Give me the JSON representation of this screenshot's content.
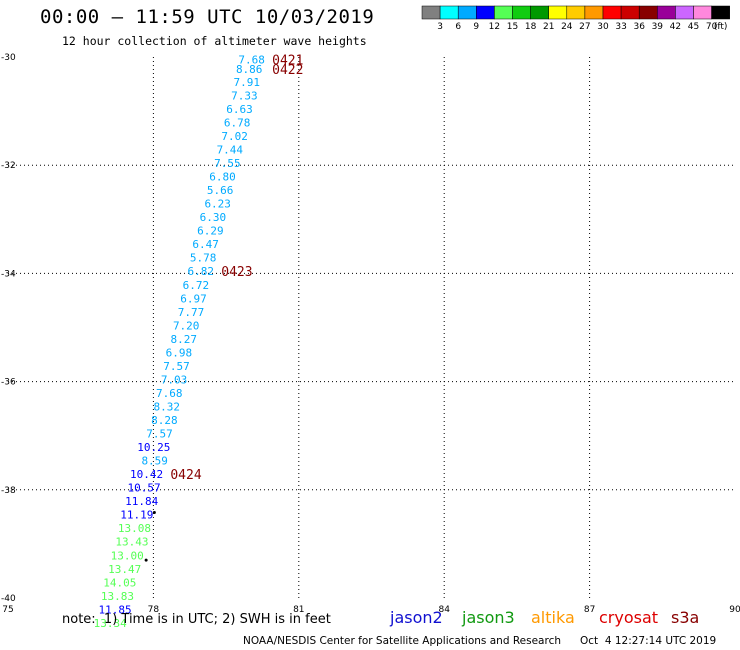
{
  "title": "00:00 — 11:59 UTC 10/03/2019",
  "subtitle": "12 hour collection of altimeter wave heights",
  "note": "note:  1) Time is in UTC; 2) SWH is in feet",
  "footer_left": "NOAA/NESDIS Center for Satellite Applications and Research",
  "footer_right": "Oct  4 12:27:14 UTC 2019",
  "satellites": [
    {
      "name": "jason2",
      "color": "#1010d0"
    },
    {
      "name": "jason3",
      "color": "#119911"
    },
    {
      "name": "altika",
      "color": "#ff9900"
    },
    {
      "name": "cryosat",
      "color": "#dd0000"
    },
    {
      "name": "s3a",
      "color": "#880000"
    }
  ],
  "colorbar": {
    "colors": [
      "#808080",
      "#00ffff",
      "#00aaff",
      "#0000ff",
      "#55ff55",
      "#11cc11",
      "#009900",
      "#ffff00",
      "#ffcc00",
      "#ff9900",
      "#ff0000",
      "#cc0000",
      "#880000",
      "#990099",
      "#cc66ff",
      "#ff88dd",
      "#000000"
    ],
    "labels": [
      "3",
      "6",
      "9",
      "12",
      "15",
      "18",
      "21",
      "24",
      "27",
      "30",
      "33",
      "36",
      "39",
      "42",
      "45",
      "70",
      "(ft)"
    ]
  },
  "chart_data": {
    "type": "scatter",
    "xlim": [
      75,
      90
    ],
    "ylim": [
      -40,
      -30
    ],
    "xticks": [
      "75",
      "78",
      "81",
      "84",
      "87",
      "90"
    ],
    "yticks": [
      "-30",
      "-32",
      "-34",
      "-36",
      "-38",
      "-40"
    ],
    "grid": true,
    "points": [
      {
        "x": 80.3,
        "y": -30.05,
        "v": "7.68",
        "color": "#00aaff"
      },
      {
        "x": 80.25,
        "y": -30.22,
        "v": "8.86",
        "color": "#00aaff"
      },
      {
        "x": 80.2,
        "y": -30.46,
        "v": "7.91",
        "color": "#00aaff"
      },
      {
        "x": 80.15,
        "y": -30.71,
        "v": "7.33",
        "color": "#00aaff"
      },
      {
        "x": 80.05,
        "y": -30.96,
        "v": "6.63",
        "color": "#00aaff"
      },
      {
        "x": 80.0,
        "y": -31.21,
        "v": "6.78",
        "color": "#00aaff"
      },
      {
        "x": 79.95,
        "y": -31.46,
        "v": "7.02",
        "color": "#00aaff"
      },
      {
        "x": 79.85,
        "y": -31.71,
        "v": "7.44",
        "color": "#00aaff"
      },
      {
        "x": 79.8,
        "y": -31.96,
        "v": "7.55",
        "color": "#00aaff"
      },
      {
        "x": 79.7,
        "y": -32.21,
        "v": "6.80",
        "color": "#00aaff"
      },
      {
        "x": 79.65,
        "y": -32.46,
        "v": "5.66",
        "color": "#00aaff"
      },
      {
        "x": 79.6,
        "y": -32.71,
        "v": "6.23",
        "color": "#00aaff"
      },
      {
        "x": 79.5,
        "y": -32.96,
        "v": "6.30",
        "color": "#00aaff"
      },
      {
        "x": 79.45,
        "y": -33.21,
        "v": "6.29",
        "color": "#00aaff"
      },
      {
        "x": 79.35,
        "y": -33.46,
        "v": "6.47",
        "color": "#00aaff"
      },
      {
        "x": 79.3,
        "y": -33.71,
        "v": "5.78",
        "color": "#00aaff"
      },
      {
        "x": 79.25,
        "y": -33.96,
        "v": "6.82",
        "color": "#00aaff"
      },
      {
        "x": 79.15,
        "y": -34.21,
        "v": "6.72",
        "color": "#00aaff"
      },
      {
        "x": 79.1,
        "y": -34.46,
        "v": "6.97",
        "color": "#00aaff"
      },
      {
        "x": 79.05,
        "y": -34.71,
        "v": "7.77",
        "color": "#00aaff"
      },
      {
        "x": 78.95,
        "y": -34.96,
        "v": "7.20",
        "color": "#00aaff"
      },
      {
        "x": 78.9,
        "y": -35.21,
        "v": "8.27",
        "color": "#00aaff"
      },
      {
        "x": 78.8,
        "y": -35.46,
        "v": "6.98",
        "color": "#00aaff"
      },
      {
        "x": 78.75,
        "y": -35.71,
        "v": "7.57",
        "color": "#00aaff"
      },
      {
        "x": 78.7,
        "y": -35.96,
        "v": "7.03",
        "color": "#00aaff"
      },
      {
        "x": 78.6,
        "y": -36.21,
        "v": "7.68",
        "color": "#00aaff"
      },
      {
        "x": 78.55,
        "y": -36.46,
        "v": "8.32",
        "color": "#00aaff"
      },
      {
        "x": 78.5,
        "y": -36.71,
        "v": "8.28",
        "color": "#00aaff"
      },
      {
        "x": 78.4,
        "y": -36.96,
        "v": "7.57",
        "color": "#00aaff"
      },
      {
        "x": 78.35,
        "y": -37.21,
        "v": "10.25",
        "color": "#0000ff"
      },
      {
        "x": 78.3,
        "y": -37.46,
        "v": "8.59",
        "color": "#00aaff"
      },
      {
        "x": 78.2,
        "y": -37.71,
        "v": "10.42",
        "color": "#0000ff"
      },
      {
        "x": 78.15,
        "y": -37.96,
        "v": "10.57",
        "color": "#0000ff"
      },
      {
        "x": 78.1,
        "y": -38.21,
        "v": "11.84",
        "color": "#0000ff"
      },
      {
        "x": 78.0,
        "y": -38.46,
        "v": "11.19",
        "color": "#0000ff"
      },
      {
        "x": 77.95,
        "y": -38.71,
        "v": "13.08",
        "color": "#55ff55"
      },
      {
        "x": 77.9,
        "y": -38.96,
        "v": "13.43",
        "color": "#55ff55"
      },
      {
        "x": 77.8,
        "y": -39.21,
        "v": "13.00",
        "color": "#55ff55"
      },
      {
        "x": 77.75,
        "y": -39.46,
        "v": "13.47",
        "color": "#55ff55"
      },
      {
        "x": 77.65,
        "y": -39.71,
        "v": "14.05",
        "color": "#55ff55"
      },
      {
        "x": 77.6,
        "y": -39.96,
        "v": "13.83",
        "color": "#55ff55"
      },
      {
        "x": 77.55,
        "y": -40.21,
        "v": "11.85",
        "color": "#0000ff"
      },
      {
        "x": 77.45,
        "y": -40.46,
        "v": "13.34",
        "color": "#55ff55"
      }
    ],
    "time_labels": [
      {
        "x": 80.45,
        "y": -30.05,
        "text": "0421"
      },
      {
        "x": 80.45,
        "y": -30.22,
        "text": "0422"
      },
      {
        "x": 79.4,
        "y": -33.96,
        "text": "0423"
      },
      {
        "x": 78.35,
        "y": -37.71,
        "text": "0424"
      }
    ],
    "markers": [
      {
        "x": 78.02,
        "y": -38.42
      },
      {
        "x": 77.85,
        "y": -39.3
      }
    ]
  }
}
